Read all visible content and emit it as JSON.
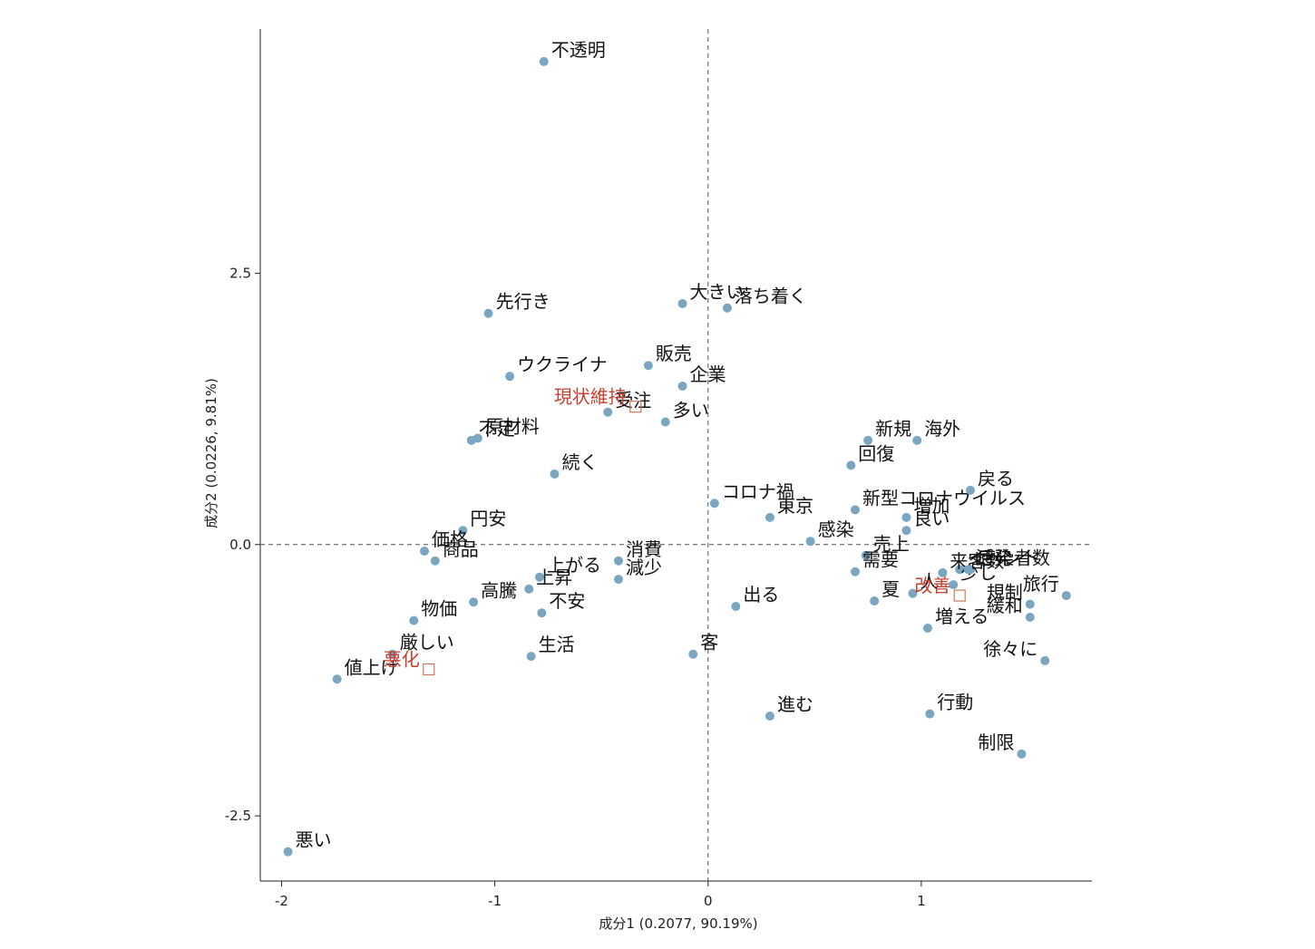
{
  "chart_data": {
    "type": "scatter",
    "xlabel": "成分1 (0.2077, 90.19%)",
    "ylabel": "成分2 (0.0226, 9.81%)",
    "xlim": [
      -2.1,
      1.8
    ],
    "ylim": [
      -3.1,
      4.75
    ],
    "x_ticks": [
      -2,
      -1,
      0,
      1
    ],
    "x_tick_labels": [
      "-2",
      "-1",
      "0",
      "1"
    ],
    "y_ticks": [
      -2.5,
      0.0,
      2.5
    ],
    "y_tick_labels": [
      "-2.5",
      "0.0",
      "2.5"
    ],
    "reference_lines": {
      "x": 0,
      "y": 0,
      "style": "dashed"
    },
    "point_color": "#7aa6c2",
    "group_color": "#c8402f",
    "marker_color": "#c87a5a",
    "words": [
      {
        "label": "不透明",
        "x": -0.77,
        "y": 4.45
      },
      {
        "label": "先行き",
        "x": -1.03,
        "y": 2.13
      },
      {
        "label": "大きい",
        "x": -0.12,
        "y": 2.22
      },
      {
        "label": "落ち着く",
        "x": 0.09,
        "y": 2.18
      },
      {
        "label": "販売",
        "x": -0.28,
        "y": 1.65
      },
      {
        "label": "企業",
        "x": -0.12,
        "y": 1.46
      },
      {
        "label": "ウクライナ",
        "x": -0.93,
        "y": 1.55
      },
      {
        "label": "受注",
        "x": -0.47,
        "y": 1.22
      },
      {
        "label": "多い",
        "x": -0.2,
        "y": 1.13
      },
      {
        "label": "原材料",
        "x": -1.08,
        "y": 0.98
      },
      {
        "label": "不足",
        "x": -1.11,
        "y": 0.96
      },
      {
        "label": "続く",
        "x": -0.72,
        "y": 0.65
      },
      {
        "label": "新規",
        "x": 0.75,
        "y": 0.96
      },
      {
        "label": "海外",
        "x": 0.98,
        "y": 0.96
      },
      {
        "label": "回復",
        "x": 0.67,
        "y": 0.73
      },
      {
        "label": "新型コロナウイルス",
        "x": 0.69,
        "y": 0.32
      },
      {
        "label": "コロナ禍",
        "x": 0.03,
        "y": 0.38
      },
      {
        "label": "東京",
        "x": 0.29,
        "y": 0.25
      },
      {
        "label": "増加",
        "x": 0.93,
        "y": 0.25
      },
      {
        "label": "戻る",
        "x": 1.23,
        "y": 0.5
      },
      {
        "label": "良い",
        "x": 0.93,
        "y": 0.13
      },
      {
        "label": "円安",
        "x": -1.15,
        "y": 0.13
      },
      {
        "label": "感染",
        "x": 0.48,
        "y": 0.03
      },
      {
        "label": "価格",
        "x": -1.33,
        "y": -0.06
      },
      {
        "label": "商品",
        "x": -1.28,
        "y": -0.15
      },
      {
        "label": "売上",
        "x": 0.74,
        "y": -0.1
      },
      {
        "label": "感染者数",
        "x": 1.23,
        "y": -0.23
      },
      {
        "label": "イベント",
        "x": 1.18,
        "y": -0.23
      },
      {
        "label": "来客数",
        "x": 1.1,
        "y": -0.26
      },
      {
        "label": "上がる",
        "x": -0.79,
        "y": -0.3
      },
      {
        "label": "消費",
        "x": -0.42,
        "y": -0.15
      },
      {
        "label": "減少",
        "x": -0.42,
        "y": -0.32
      },
      {
        "label": "需要",
        "x": 0.69,
        "y": -0.25
      },
      {
        "label": "少し",
        "x": 1.15,
        "y": -0.37
      },
      {
        "label": "活発",
        "x": 1.22,
        "y": -0.23
      },
      {
        "label": "上昇",
        "x": -0.84,
        "y": -0.41
      },
      {
        "label": "人",
        "x": 0.96,
        "y": -0.45
      },
      {
        "label": "不安",
        "x": -0.78,
        "y": -0.63
      },
      {
        "label": "夏",
        "x": 0.78,
        "y": -0.52
      },
      {
        "label": "出る",
        "x": 0.13,
        "y": -0.57
      },
      {
        "label": "物価",
        "x": -1.38,
        "y": -0.7
      },
      {
        "label": "高騰",
        "x": -1.1,
        "y": -0.53
      },
      {
        "label": "規制",
        "x": 1.51,
        "y": -0.55
      },
      {
        "label": "旅行",
        "x": 1.68,
        "y": -0.47
      },
      {
        "label": "増える",
        "x": 1.03,
        "y": -0.77
      },
      {
        "label": "厳しい",
        "x": -1.48,
        "y": -1.01
      },
      {
        "label": "生活",
        "x": -0.83,
        "y": -1.03
      },
      {
        "label": "緩和",
        "x": 1.51,
        "y": -0.67
      },
      {
        "label": "徐々に",
        "x": 1.58,
        "y": -1.07
      },
      {
        "label": "客",
        "x": -0.07,
        "y": -1.01
      },
      {
        "label": "値上げ",
        "x": -1.74,
        "y": -1.24
      },
      {
        "label": "進む",
        "x": 0.29,
        "y": -1.58
      },
      {
        "label": "行動",
        "x": 1.04,
        "y": -1.56
      },
      {
        "label": "制限",
        "x": 1.47,
        "y": -1.93
      },
      {
        "label": "悪い",
        "x": -1.97,
        "y": -2.83
      }
    ],
    "groups": [
      {
        "label": "現状維持",
        "x": -0.34,
        "y": 1.27
      },
      {
        "label": "改善",
        "x": 1.18,
        "y": -0.47
      },
      {
        "label": "悪化",
        "x": -1.31,
        "y": -1.15
      }
    ]
  }
}
